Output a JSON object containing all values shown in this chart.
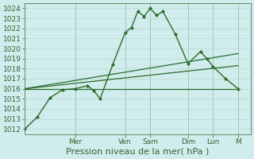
{
  "bg_color": "#d0ecec",
  "grid_color": "#b8d8d0",
  "line_color": "#2a6b2a",
  "ylim": [
    1011.5,
    1024.5
  ],
  "yticks": [
    1012,
    1013,
    1014,
    1015,
    1016,
    1017,
    1018,
    1019,
    1020,
    1021,
    1022,
    1023,
    1024
  ],
  "xlabel": "Pression niveau de la mer( hPa )",
  "xlabel_fontsize": 8,
  "tick_fontsize": 6.5,
  "day_labels": [
    "Mer",
    "Ven",
    "Sam",
    "Dim",
    "Lun",
    "M"
  ],
  "day_positions": [
    24,
    48,
    60,
    78,
    90,
    102
  ],
  "xlim": [
    0,
    108
  ],
  "series1_x": [
    0,
    6,
    12,
    18,
    24,
    30,
    33,
    36,
    42,
    48,
    51,
    54,
    57,
    60,
    63,
    66,
    72,
    78,
    84,
    87,
    90,
    96,
    102
  ],
  "series1_y": [
    1012.0,
    1013.2,
    1015.1,
    1015.9,
    1016.0,
    1016.3,
    1015.8,
    1015.0,
    1018.4,
    1021.6,
    1022.1,
    1023.7,
    1023.2,
    1024.0,
    1023.3,
    1023.7,
    1021.4,
    1018.5,
    1019.7,
    1019.0,
    1018.2,
    1017.0,
    1016.0
  ],
  "series2_x": [
    0,
    102
  ],
  "series2_y": [
    1016.0,
    1019.5
  ],
  "series3_x": [
    0,
    102
  ],
  "series3_y": [
    1016.0,
    1018.3
  ],
  "series4_x": [
    0,
    102
  ],
  "series4_y": [
    1016.0,
    1016.0
  ],
  "vline_positions": [
    24,
    48,
    60,
    78,
    90,
    102
  ]
}
